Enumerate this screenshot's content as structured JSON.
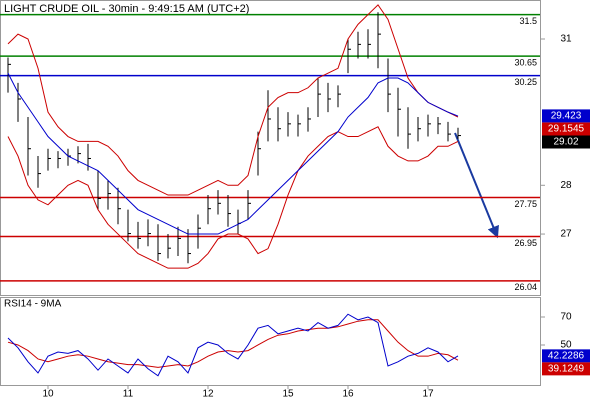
{
  "chart_data": [
    {
      "type": "ohlc",
      "title": "LIGHT CRUDE OIL - 30min - 9:49:15 AM (UTC+2)",
      "categories": [
        null,
        null,
        null,
        null,
        "10",
        null,
        null,
        null,
        null,
        null,
        null,
        null,
        "11",
        null,
        null,
        null,
        null,
        null,
        null,
        null,
        "12",
        null,
        null,
        null,
        null,
        null,
        null,
        null,
        "15",
        null,
        null,
        null,
        null,
        null,
        "16",
        null,
        null,
        null,
        null,
        null,
        null,
        null,
        "17",
        null,
        null,
        null
      ],
      "high": [
        30.62,
        30.1,
        29.4,
        28.6,
        28.75,
        28.7,
        28.75,
        28.8,
        28.85,
        28.3,
        28.1,
        27.95,
        27.5,
        27.25,
        27.3,
        27.2,
        27.0,
        27.15,
        27.1,
        27.4,
        27.8,
        27.9,
        27.8,
        27.5,
        27.9,
        29.1,
        29.95,
        29.6,
        29.5,
        29.45,
        29.6,
        30.2,
        30.1,
        30.05,
        31.0,
        31.15,
        31.2,
        31.55,
        30.6,
        30.0,
        29.6,
        29.4,
        29.45,
        29.4,
        29.3,
        29.18
      ],
      "low": [
        29.9,
        29.3,
        28.2,
        27.95,
        28.3,
        28.35,
        28.4,
        28.45,
        28.3,
        27.5,
        27.5,
        27.2,
        26.85,
        26.7,
        26.75,
        26.45,
        26.5,
        26.55,
        26.4,
        26.7,
        27.2,
        27.4,
        27.15,
        27.0,
        27.3,
        28.2,
        28.9,
        28.9,
        29.0,
        29.0,
        29.1,
        29.4,
        29.5,
        29.6,
        30.3,
        30.6,
        30.6,
        30.4,
        29.5,
        29.0,
        28.75,
        28.9,
        29.0,
        29.05,
        28.9,
        28.95
      ],
      "close": [
        30.48,
        29.77,
        28.75,
        28.24,
        28.55,
        28.55,
        28.6,
        28.65,
        28.55,
        27.73,
        27.83,
        27.52,
        27.01,
        26.91,
        27.01,
        26.6,
        26.71,
        26.91,
        26.6,
        27.12,
        27.52,
        27.63,
        27.42,
        27.22,
        27.63,
        28.75,
        29.36,
        29.16,
        29.26,
        29.26,
        29.36,
        29.87,
        29.77,
        29.87,
        30.79,
        30.89,
        30.89,
        31.1,
        29.87,
        29.56,
        29.05,
        29.16,
        29.26,
        29.26,
        29.05,
        29.02
      ],
      "bar_color": "#000000",
      "upper_band": [
        30.9,
        31.1,
        31.0,
        30.4,
        29.5,
        29.2,
        29.0,
        28.9,
        28.9,
        28.9,
        28.8,
        28.6,
        28.3,
        28.1,
        28.0,
        27.9,
        27.8,
        27.8,
        27.8,
        27.9,
        28.0,
        28.1,
        28.0,
        28.0,
        28.2,
        29.0,
        29.6,
        29.8,
        29.9,
        29.9,
        30.0,
        30.2,
        30.3,
        30.4,
        31.0,
        31.3,
        31.5,
        31.7,
        31.4,
        30.8,
        30.2,
        29.9,
        29.7,
        29.6,
        29.5,
        29.4
      ],
      "lower_band": [
        29.0,
        28.6,
        28.0,
        27.7,
        27.6,
        27.8,
        28.0,
        28.1,
        28.0,
        27.5,
        27.2,
        27.0,
        26.8,
        26.6,
        26.5,
        26.4,
        26.3,
        26.3,
        26.3,
        26.4,
        26.6,
        26.9,
        27.0,
        27.0,
        26.9,
        26.6,
        26.7,
        27.2,
        27.8,
        28.3,
        28.6,
        28.8,
        29.0,
        29.1,
        29.0,
        29.0,
        29.1,
        29.2,
        28.8,
        28.6,
        28.5,
        28.5,
        28.6,
        28.8,
        28.8,
        28.9
      ],
      "band_color": "#cc0000",
      "moving_average": [
        30.3,
        29.9,
        29.6,
        29.3,
        29.0,
        28.8,
        28.6,
        28.5,
        28.4,
        28.3,
        28.1,
        27.9,
        27.7,
        27.5,
        27.4,
        27.3,
        27.2,
        27.1,
        27.0,
        27.0,
        27.0,
        27.0,
        27.1,
        27.2,
        27.3,
        27.5,
        27.7,
        27.9,
        28.1,
        28.3,
        28.5,
        28.7,
        28.9,
        29.1,
        29.4,
        29.6,
        29.8,
        30.1,
        30.2,
        30.2,
        30.1,
        29.9,
        29.7,
        29.6,
        29.5,
        29.42
      ],
      "ma_color": "#0000cc",
      "levels": [
        {
          "value": 31.5,
          "color": "#008000"
        },
        {
          "value": 30.65,
          "color": "#008000"
        },
        {
          "value": 30.25,
          "color": "#0000cc"
        },
        {
          "value": 27.75,
          "color": "#cc0000"
        },
        {
          "value": 26.95,
          "color": "#cc0000"
        },
        {
          "value": 26.04,
          "color": "#cc0000"
        }
      ],
      "price_tags": [
        {
          "value": 29.423,
          "color": "#0000cc"
        },
        {
          "value": 29.1545,
          "color": "#cc0000"
        },
        {
          "value": 29.02,
          "color": "#000000"
        }
      ],
      "ylim": [
        25.75,
        31.8
      ],
      "yticks": [
        27,
        28,
        31
      ]
    },
    {
      "type": "rsi",
      "title": "RSI14 - 9MA",
      "rsi": [
        55,
        48,
        38,
        30,
        42,
        45,
        44,
        46,
        40,
        32,
        40,
        35,
        30,
        40,
        33,
        28,
        42,
        38,
        30,
        48,
        52,
        50,
        44,
        40,
        50,
        62,
        64,
        58,
        60,
        62,
        60,
        66,
        62,
        64,
        72,
        68,
        70,
        66,
        35,
        38,
        42,
        44,
        48,
        45,
        38,
        42.2
      ],
      "rsi_color": "#0000cc",
      "ma": [
        52,
        50,
        46,
        40,
        38,
        40,
        42,
        43,
        42,
        40,
        38,
        37,
        36,
        36,
        35,
        34,
        35,
        36,
        35,
        38,
        42,
        45,
        46,
        45,
        46,
        50,
        54,
        57,
        58,
        60,
        61,
        62,
        62,
        63,
        65,
        67,
        68,
        68,
        60,
        52,
        46,
        42,
        42,
        44,
        43,
        39.12
      ],
      "ma_color": "#cc0000",
      "price_tags": [
        {
          "value": 42.2286,
          "color": "#0000cc"
        },
        {
          "value": 39.1249,
          "color": "#cc0000"
        }
      ],
      "ylim": [
        21.4,
        84.3
      ],
      "yticks": [
        50,
        70
      ]
    }
  ]
}
